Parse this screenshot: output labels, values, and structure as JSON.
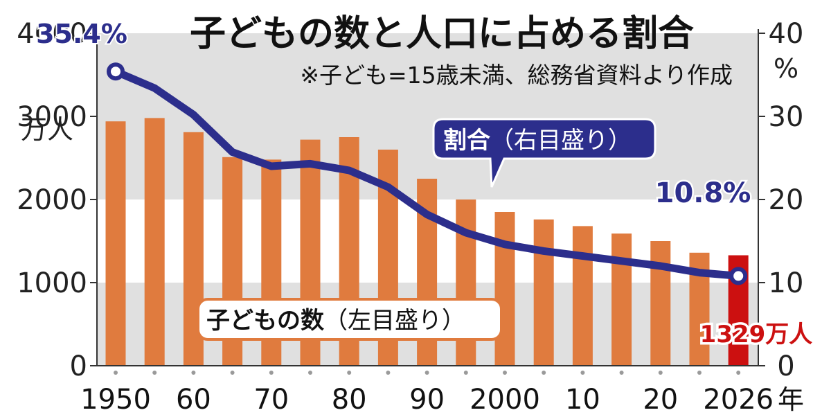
{
  "chart_data": {
    "type": "bar",
    "title": "子どもの数と人口に占める割合",
    "subtitle": "※子ども=15歳未満、総務省資料より作成",
    "left_axis": {
      "unit": "万人",
      "ticks": [
        0,
        1000,
        2000,
        3000,
        4000
      ],
      "tick_labels": [
        "0",
        "1000",
        "2000",
        "3000",
        "4000"
      ],
      "ylim": [
        0,
        4000
      ]
    },
    "right_axis": {
      "unit": "%",
      "ticks": [
        0,
        10,
        20,
        30,
        40
      ],
      "tick_labels": [
        "0",
        "10",
        "20",
        "30",
        "40"
      ],
      "ylim": [
        0,
        40
      ]
    },
    "x": [
      1950,
      1955,
      1960,
      1965,
      1970,
      1975,
      1980,
      1985,
      1990,
      1995,
      2000,
      2005,
      2010,
      2015,
      2020,
      2025,
      2026
    ],
    "x_tick_labels": [
      {
        "x": 1950,
        "label": "1950"
      },
      {
        "x": 1960,
        "label": "60"
      },
      {
        "x": 1970,
        "label": "70"
      },
      {
        "x": 1980,
        "label": "80"
      },
      {
        "x": 1990,
        "label": "90"
      },
      {
        "x": 2000,
        "label": "2000"
      },
      {
        "x": 2010,
        "label": "10"
      },
      {
        "x": 2020,
        "label": "20"
      },
      {
        "x": 2026,
        "label": "2026"
      }
    ],
    "x_unit": "年",
    "series": [
      {
        "name": "子どもの数",
        "axis_note": "（左目盛り）",
        "type": "bar",
        "values": [
          2940,
          2980,
          2810,
          2510,
          2480,
          2720,
          2750,
          2600,
          2250,
          2000,
          1850,
          1760,
          1680,
          1590,
          1500,
          1360,
          1329
        ],
        "color": "#e07b3e",
        "highlight_color": "#cc1010"
      },
      {
        "name": "割合",
        "axis_note": "（右目盛り）",
        "type": "line",
        "values": [
          35.4,
          33.4,
          30.2,
          25.7,
          24.0,
          24.3,
          23.5,
          21.5,
          18.2,
          16.0,
          14.6,
          13.8,
          13.2,
          12.6,
          12.0,
          11.2,
          10.8
        ],
        "color": "#2c2e8c"
      }
    ],
    "annotations": {
      "start_ratio": "35.4%",
      "end_ratio": "10.8%",
      "end_count": "1329万人"
    },
    "colors": {
      "band": "#e0e0e0",
      "axis": "#333333",
      "marker_dot": "#9a9a9a"
    }
  }
}
